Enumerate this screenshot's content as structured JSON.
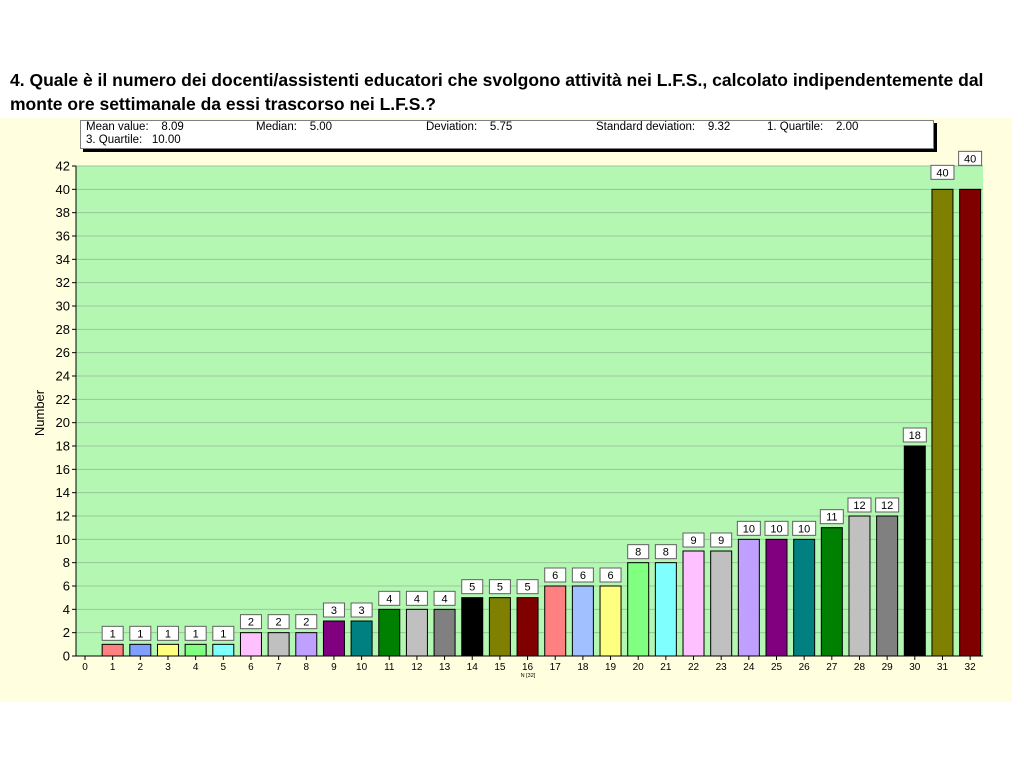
{
  "title": "4. Quale è il numero dei docenti/assistenti educatori che svolgono attività nei L.F.S., calcolato indipendentemente dal monte ore settimanale da essi trascorso nei L.F.S.?",
  "stats": {
    "mean": "Mean value:    8.09",
    "median": "Median:    5.00",
    "deviation": "Deviation:    5.75",
    "std_dev": "Standard deviation:    9.32",
    "q1": "1. Quartile:    2.00",
    "q3": "3. Quartile:   10.00"
  },
  "colors": {
    "plot_background": "#b3f7b3",
    "panel_background": "#ffffe0",
    "grid": "#98c898"
  },
  "chart_data": {
    "type": "bar",
    "ylabel": "Number",
    "xlabel": "",
    "note": "N [32]",
    "ylim": [
      0,
      42
    ],
    "ytick_step": 2,
    "categories": [
      "1",
      "2",
      "3",
      "4",
      "5",
      "6",
      "7",
      "8",
      "9",
      "10",
      "11",
      "12",
      "13",
      "14",
      "15",
      "16",
      "17",
      "18",
      "19",
      "20",
      "21",
      "22",
      "23",
      "24",
      "25",
      "26",
      "27",
      "28",
      "29",
      "30",
      "31",
      "32"
    ],
    "x_tick_labels": [
      "0",
      "1",
      "2",
      "3",
      "4",
      "5",
      "6",
      "7",
      "8",
      "9",
      "10",
      "11",
      "12",
      "13",
      "14",
      "15",
      "16",
      "17",
      "18",
      "19",
      "20",
      "21",
      "22",
      "23",
      "24",
      "25",
      "26",
      "27",
      "28",
      "29",
      "30",
      "31",
      "32"
    ],
    "values": [
      1,
      1,
      1,
      1,
      1,
      2,
      2,
      2,
      3,
      3,
      4,
      4,
      4,
      5,
      5,
      5,
      6,
      6,
      6,
      8,
      8,
      9,
      9,
      10,
      10,
      10,
      11,
      12,
      12,
      18,
      40,
      40
    ],
    "bar_colors": [
      "#ff8080",
      "#80a0ff",
      "#ffff80",
      "#80ff80",
      "#80ffff",
      "#ffc0ff",
      "#c0c0c0",
      "#c0a0ff",
      "#800080",
      "#008080",
      "#008000",
      "#c0c0c0",
      "#808080",
      "#000000",
      "#808000",
      "#800000",
      "#ff8080",
      "#a0c0ff",
      "#ffff80",
      "#80ff80",
      "#80ffff",
      "#ffc0ff",
      "#c0c0c0",
      "#c0a0ff",
      "#800080",
      "#008080",
      "#008000",
      "#c0c0c0",
      "#808080",
      "#000000",
      "#808000",
      "#800000"
    ]
  }
}
